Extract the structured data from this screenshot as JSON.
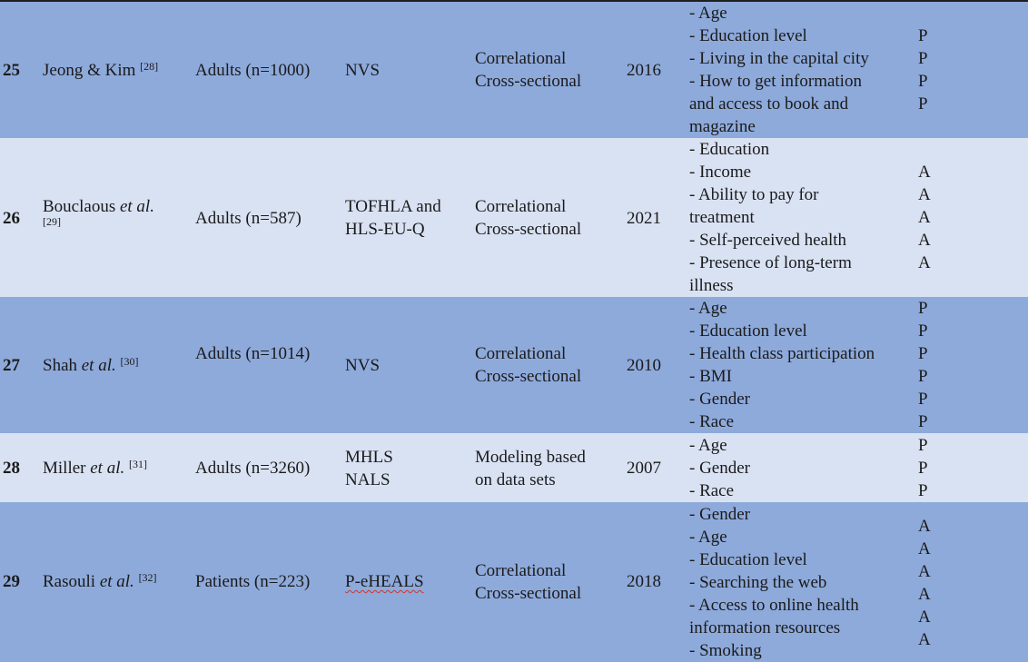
{
  "rows": [
    {
      "num": "25",
      "author_name": "Jeong & Kim",
      "author_etal": "",
      "ref": "[28]",
      "participants": "Adults (n=1000)",
      "tool": [
        "NVS"
      ],
      "design": [
        "Correlational",
        "Cross-sectional"
      ],
      "year": "2016",
      "factors": [
        "- Age",
        "- Education level",
        "- Living in the capital city",
        "- How to get information",
        "and access to book and",
        "magazine"
      ],
      "marks": [
        "P",
        "P",
        "P",
        "P"
      ]
    },
    {
      "num": "26",
      "author_name": "Bouclaous",
      "author_etal": "et al.",
      "ref": "[29]",
      "participants": "Adults (n=587)",
      "tool": [
        "TOFHLA and",
        "HLS-EU-Q"
      ],
      "design": [
        "Correlational",
        "Cross-sectional"
      ],
      "year": "2021",
      "factors": [
        "- Education",
        "- Income",
        "- Ability to pay for",
        "treatment",
        "- Self-perceived health",
        "- Presence of long-term",
        "illness"
      ],
      "marks": [
        "A",
        "A",
        "A",
        "A",
        "A"
      ]
    },
    {
      "num": "27",
      "author_name": "Shah",
      "author_etal": "et al.",
      "ref": "[30]",
      "participants": "Adults (n=1014)",
      "tool": [
        "NVS"
      ],
      "design": [
        "Correlational",
        "Cross-sectional"
      ],
      "year": "2010",
      "factors": [
        "- Age",
        "- Education level",
        "- Health class participation",
        "- BMI",
        "- Gender",
        "- Race"
      ],
      "marks": [
        "P",
        "P",
        "P",
        "P",
        "P",
        "P"
      ]
    },
    {
      "num": "28",
      "author_name": "Miller",
      "author_etal": "et al.",
      "ref": "[31]",
      "participants": "Adults (n=3260)",
      "tool": [
        "MHLS",
        "NALS"
      ],
      "design": [
        "Modeling based",
        "on data sets"
      ],
      "year": "2007",
      "factors": [
        "- Age",
        "- Gender",
        "- Race"
      ],
      "marks": [
        "P",
        "P",
        "P"
      ]
    },
    {
      "num": "29",
      "author_name": "Rasouli",
      "author_etal": "et al.",
      "ref": "[32]",
      "participants": "Patients (n=223)",
      "tool": [
        "P-eHEALS"
      ],
      "design": [
        "Correlational",
        "Cross-sectional"
      ],
      "year": "2018",
      "factors": [
        "- Gender",
        "- Age",
        "- Education level",
        "- Searching the web",
        "- Access to online health",
        "information resources",
        "- Smoking"
      ],
      "marks": [
        "A",
        "A",
        "A",
        "A",
        "A",
        "A"
      ]
    }
  ]
}
